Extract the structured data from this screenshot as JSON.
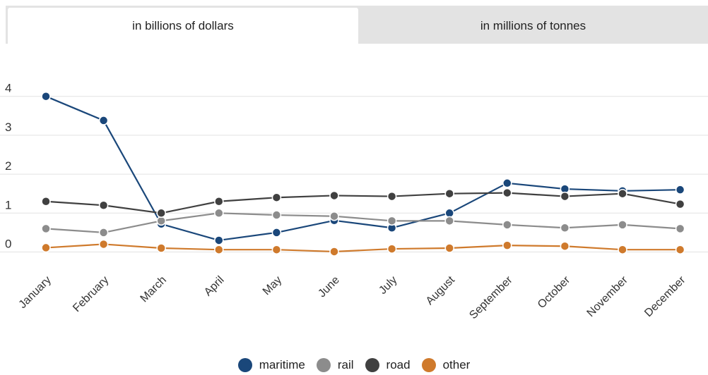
{
  "tabs": [
    {
      "label": "in billions of dollars",
      "active": true
    },
    {
      "label": "in millions of tonnes",
      "active": false
    }
  ],
  "chart_data": {
    "type": "line",
    "categories": [
      "January",
      "February",
      "March",
      "April",
      "May",
      "June",
      "July",
      "August",
      "September",
      "October",
      "November",
      "December"
    ],
    "yticks": [
      0,
      1,
      2,
      3,
      4
    ],
    "ylim": [
      -0.1,
      4.3
    ],
    "grid": true,
    "legend_position": "bottom",
    "series": [
      {
        "name": "maritime",
        "color": "#1a477a",
        "values": [
          4.0,
          3.38,
          0.72,
          0.3,
          0.5,
          0.81,
          0.62,
          1.0,
          1.77,
          1.62,
          1.57,
          1.6
        ]
      },
      {
        "name": "rail",
        "color": "#8c8c8c",
        "values": [
          0.6,
          0.5,
          0.8,
          1.0,
          0.95,
          0.92,
          0.8,
          0.8,
          0.7,
          0.62,
          0.7,
          0.6
        ]
      },
      {
        "name": "road",
        "color": "#404040",
        "values": [
          1.3,
          1.2,
          1.0,
          1.3,
          1.4,
          1.45,
          1.43,
          1.5,
          1.52,
          1.43,
          1.5,
          1.23
        ]
      },
      {
        "name": "other",
        "color": "#cf7a2c",
        "values": [
          0.11,
          0.2,
          0.1,
          0.06,
          0.06,
          0.01,
          0.08,
          0.1,
          0.17,
          0.15,
          0.06,
          0.06
        ]
      }
    ]
  }
}
